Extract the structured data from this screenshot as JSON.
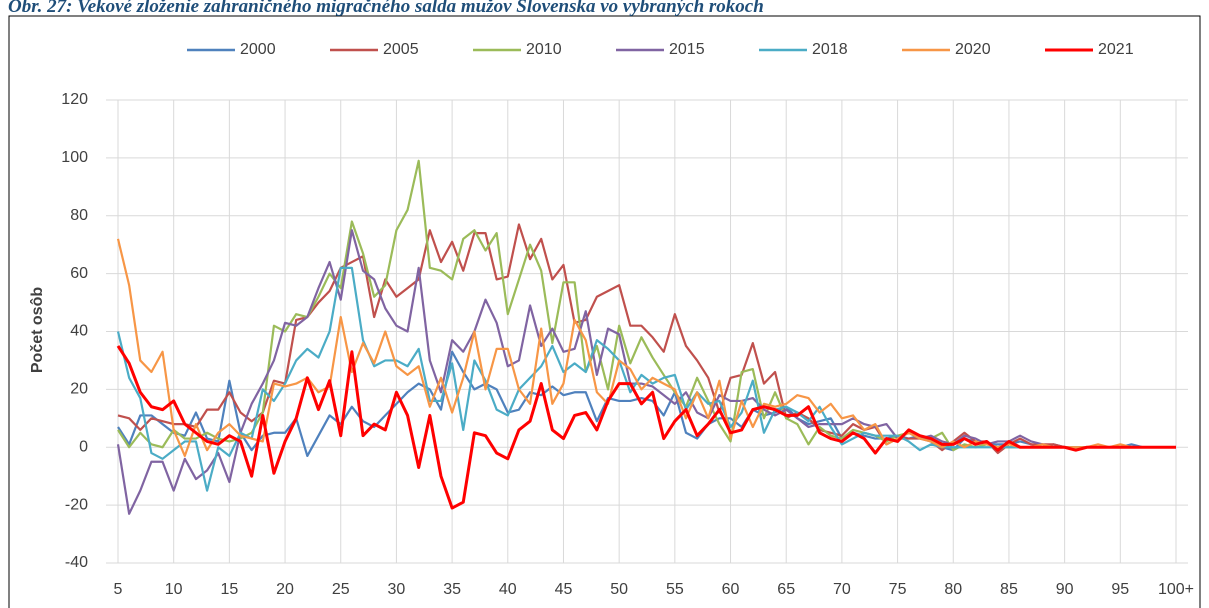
{
  "chart_data": {
    "type": "line",
    "title": "Obr. 27: Vekové zloženie zahraničného migračného salda mužov Slovenska vo vybraných rokoch",
    "ylabel": "Počet osôb",
    "categories": [
      5,
      null,
      null,
      null,
      null,
      10,
      null,
      null,
      null,
      null,
      15,
      null,
      null,
      null,
      null,
      20,
      null,
      null,
      null,
      null,
      25,
      null,
      null,
      null,
      null,
      30,
      null,
      null,
      null,
      null,
      35,
      null,
      null,
      null,
      null,
      40,
      null,
      null,
      null,
      null,
      45,
      null,
      null,
      null,
      null,
      50,
      null,
      null,
      null,
      null,
      55,
      null,
      null,
      null,
      null,
      60,
      null,
      null,
      null,
      null,
      65,
      null,
      null,
      null,
      null,
      70,
      null,
      null,
      null,
      null,
      75,
      null,
      null,
      null,
      null,
      80,
      null,
      null,
      null,
      null,
      85,
      null,
      null,
      null,
      null,
      90,
      null,
      null,
      null,
      null,
      95,
      null,
      null,
      null,
      null,
      "100+"
    ],
    "ylim": [
      -40,
      120
    ],
    "yticks": [
      -40,
      -20,
      0,
      20,
      40,
      60,
      80,
      100,
      120
    ],
    "grid": true,
    "legend": "top",
    "series": [
      {
        "name": "2000",
        "color": "#4f81bd",
        "values": [
          7,
          1,
          11,
          11,
          8,
          5,
          4,
          12,
          3,
          2,
          23,
          5,
          -1,
          4,
          5,
          5,
          10,
          -3,
          4,
          11,
          8,
          14,
          9,
          7,
          11,
          15,
          19,
          22,
          20,
          13,
          33,
          26,
          20,
          22,
          20,
          12,
          13,
          19,
          18,
          21,
          18,
          19,
          19,
          9,
          17,
          16,
          16,
          17,
          16,
          11,
          19,
          5,
          3,
          8,
          10,
          10,
          7,
          13,
          11,
          12,
          14,
          10,
          8,
          9,
          10,
          3,
          5,
          4,
          3,
          3,
          4,
          3,
          4,
          2,
          0,
          -1,
          3,
          2,
          1,
          1,
          1,
          2,
          1,
          0,
          1,
          0,
          0,
          0,
          0,
          0,
          0,
          1,
          0,
          0,
          0,
          0
        ]
      },
      {
        "name": "2005",
        "color": "#c0504d",
        "values": [
          11,
          10,
          6,
          10,
          9,
          8,
          8,
          7,
          13,
          13,
          19,
          12,
          9,
          12,
          23,
          22,
          44,
          45,
          50,
          54,
          62,
          64,
          66,
          45,
          58,
          52,
          55,
          58,
          75,
          64,
          71,
          61,
          74,
          74,
          58,
          59,
          77,
          65,
          72,
          58,
          63,
          43,
          44,
          52,
          54,
          56,
          42,
          42,
          38,
          33,
          46,
          35,
          30,
          24,
          12,
          24,
          25,
          36,
          22,
          26,
          10,
          12,
          10,
          6,
          5,
          4,
          8,
          6,
          7,
          1,
          3,
          3,
          3,
          2,
          -1,
          2,
          5,
          2,
          2,
          -2,
          1,
          3,
          1,
          1,
          1,
          0,
          0,
          0,
          0,
          0,
          0,
          0,
          0,
          0,
          0,
          0
        ]
      },
      {
        "name": "2010",
        "color": "#9bbb59",
        "values": [
          6,
          0,
          5,
          1,
          0,
          6,
          3,
          3,
          5,
          3,
          2,
          3,
          5,
          12,
          42,
          40,
          46,
          45,
          52,
          60,
          55,
          78,
          67,
          52,
          56,
          75,
          82,
          99,
          62,
          61,
          58,
          72,
          75,
          68,
          74,
          46,
          58,
          70,
          61,
          36,
          57,
          57,
          26,
          35,
          20,
          42,
          29,
          38,
          31,
          25,
          19,
          14,
          24,
          16,
          8,
          2,
          26,
          27,
          10,
          19,
          10,
          8,
          1,
          7,
          4,
          3,
          6,
          5,
          4,
          2,
          4,
          5,
          4,
          3,
          5,
          -1,
          1,
          0,
          1,
          0,
          0,
          0,
          0,
          0,
          0,
          0,
          0,
          0,
          0,
          0,
          0,
          0,
          0,
          0,
          0,
          0
        ]
      },
      {
        "name": "2015",
        "color": "#8064a2",
        "values": [
          1,
          -23,
          -15,
          -5,
          -5,
          -15,
          -4,
          -11,
          -8,
          -2,
          -12,
          5,
          15,
          22,
          30,
          43,
          42,
          45,
          55,
          64,
          51,
          75,
          61,
          58,
          48,
          42,
          40,
          62,
          30,
          19,
          37,
          33,
          40,
          51,
          43,
          28,
          30,
          49,
          35,
          41,
          33,
          34,
          47,
          25,
          41,
          39,
          22,
          22,
          21,
          18,
          15,
          19,
          12,
          10,
          18,
          16,
          16,
          17,
          13,
          11,
          13,
          10,
          7,
          8,
          8,
          8,
          10,
          8,
          7,
          8,
          3,
          5,
          3,
          4,
          2,
          1,
          4,
          3,
          1,
          2,
          2,
          4,
          2,
          1,
          0,
          0,
          0,
          0,
          0,
          0,
          0,
          0,
          0,
          0,
          0,
          0
        ]
      },
      {
        "name": "2018",
        "color": "#4bacc6",
        "values": [
          40,
          24,
          17,
          -2,
          -4,
          -1,
          2,
          2,
          -15,
          0,
          -3,
          5,
          3,
          20,
          16,
          22,
          30,
          34,
          31,
          40,
          62,
          62,
          37,
          28,
          30,
          30,
          28,
          34,
          16,
          16,
          29,
          6,
          30,
          23,
          13,
          11,
          20,
          24,
          28,
          35,
          26,
          29,
          26,
          37,
          34,
          30,
          19,
          25,
          22,
          24,
          25,
          13,
          19,
          15,
          16,
          7,
          12,
          23,
          5,
          13,
          14,
          12,
          9,
          14,
          7,
          1,
          3,
          5,
          4,
          4,
          4,
          2,
          -1,
          1,
          0,
          0,
          0,
          0,
          0,
          0,
          0,
          0,
          0,
          0,
          0,
          0,
          0,
          0,
          0,
          0,
          0,
          0,
          0,
          0,
          0,
          0
        ]
      },
      {
        "name": "2020",
        "color": "#f79646",
        "values": [
          72,
          56,
          30,
          26,
          33,
          6,
          -3,
          8,
          -1,
          5,
          8,
          4,
          3,
          2,
          22,
          21,
          22,
          24,
          19,
          21,
          45,
          26,
          36,
          29,
          40,
          28,
          25,
          28,
          14,
          24,
          12,
          24,
          40,
          20,
          34,
          34,
          20,
          15,
          41,
          15,
          22,
          44,
          37,
          19,
          15,
          30,
          27,
          20,
          24,
          22,
          20,
          10,
          19,
          10,
          23,
          3,
          16,
          7,
          15,
          14,
          15,
          18,
          17,
          12,
          15,
          10,
          11,
          6,
          8,
          1,
          3,
          5,
          3,
          2,
          0,
          2,
          0,
          2,
          1,
          0,
          1,
          0,
          0,
          1,
          0,
          0,
          0,
          0,
          1,
          0,
          1,
          0,
          0,
          0,
          0,
          0
        ]
      },
      {
        "name": "2021",
        "color": "#ff0000",
        "values": [
          35,
          29,
          19,
          14,
          13,
          16,
          8,
          5,
          2,
          1,
          4,
          2,
          -10,
          11,
          -9,
          2,
          10,
          24,
          13,
          23,
          4,
          33,
          4,
          8,
          6,
          19,
          11,
          -7,
          11,
          -10,
          -21,
          -19,
          5,
          4,
          -2,
          -4,
          6,
          9,
          22,
          6,
          3,
          11,
          12,
          6,
          16,
          22,
          22,
          15,
          19,
          3,
          9,
          13,
          4,
          8,
          13,
          5,
          6,
          13,
          14,
          13,
          11,
          11,
          14,
          5,
          3,
          2,
          5,
          3,
          -2,
          3,
          2,
          6,
          4,
          3,
          1,
          1,
          3,
          1,
          2,
          -1,
          2,
          0,
          0,
          0,
          0,
          0,
          -1,
          0,
          0,
          0,
          0,
          0,
          0,
          0,
          0,
          0
        ]
      }
    ]
  }
}
